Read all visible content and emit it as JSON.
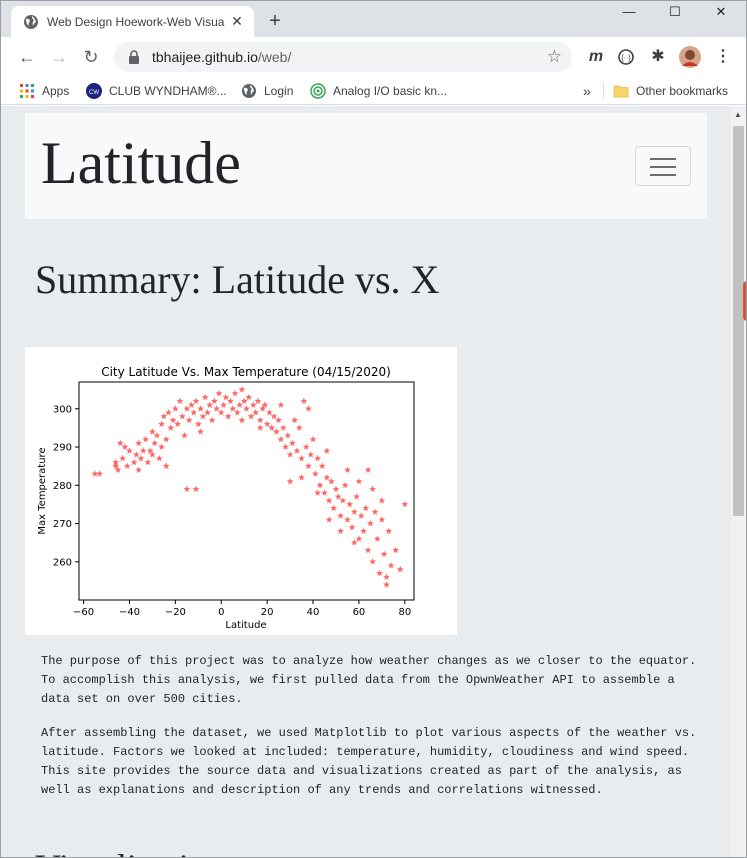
{
  "browser": {
    "tab_title": "Web Design Hoework-Web Visua",
    "url_host": "tbhaijee.github.io",
    "url_path": "/web/",
    "bookmarks": [
      {
        "label": "Apps"
      },
      {
        "label": "CLUB WYNDHAM®..."
      },
      {
        "label": "Login"
      },
      {
        "label": "Analog I/O basic kn..."
      }
    ],
    "other_bookmarks": "Other bookmarks",
    "overflow_label": "»"
  },
  "page": {
    "brand": "Latitude",
    "heading": "Summary: Latitude vs. X",
    "paragraphs": [
      "The purpose of this project was to analyze how weather changes as we closer to the equator. To accomplish this analysis, we first pulled data from the OpwnWeather API to assemble a data set on over 500 cities.",
      "After assembling the dataset, we used Matplotlib to plot various aspects of the weather vs. latitude. Factors we looked at included: temperature, humidity, cloudiness and wind speed. This site provides the source data and visualizations created as part of the analysis, as well as explanations and description of any trends and correlations witnessed."
    ],
    "next_heading": "Visualizations"
  },
  "chart_data": {
    "type": "scatter",
    "title": "City Latitude Vs. Max Temperature (04/15/2020)",
    "xlabel": "Latitude",
    "ylabel": "Max Temperature",
    "xlim": [
      -62,
      84
    ],
    "ylim": [
      250,
      307
    ],
    "xticks": [
      -60,
      -40,
      -20,
      0,
      20,
      40,
      60,
      80
    ],
    "yticks": [
      260,
      270,
      280,
      290,
      300
    ],
    "marker_color": "#ff0000",
    "marker": "star",
    "grid": false,
    "points": [
      [
        -55,
        283
      ],
      [
        -53,
        283
      ],
      [
        -46,
        285
      ],
      [
        -46,
        286
      ],
      [
        -45,
        284
      ],
      [
        -43,
        287
      ],
      [
        -42,
        290
      ],
      [
        -41,
        285
      ],
      [
        -40,
        289
      ],
      [
        -38,
        286
      ],
      [
        -37,
        288
      ],
      [
        -36,
        291
      ],
      [
        -35,
        287
      ],
      [
        -34,
        289
      ],
      [
        -33,
        292
      ],
      [
        -32,
        286
      ],
      [
        -31,
        289
      ],
      [
        -30,
        294
      ],
      [
        -30,
        288
      ],
      [
        -29,
        291
      ],
      [
        -28,
        293
      ],
      [
        -27,
        287
      ],
      [
        -26,
        296
      ],
      [
        -26,
        290
      ],
      [
        -25,
        298
      ],
      [
        -24,
        292
      ],
      [
        -23,
        299
      ],
      [
        -22,
        295
      ],
      [
        -21,
        297
      ],
      [
        -20,
        300
      ],
      [
        -19,
        296
      ],
      [
        -18,
        302
      ],
      [
        -17,
        298
      ],
      [
        -16,
        293
      ],
      [
        -15,
        300
      ],
      [
        -14,
        297
      ],
      [
        -13,
        301
      ],
      [
        -12,
        299
      ],
      [
        -11,
        302
      ],
      [
        -10,
        296
      ],
      [
        -9,
        300
      ],
      [
        -8,
        298
      ],
      [
        -7,
        303
      ],
      [
        -6,
        299
      ],
      [
        -5,
        301
      ],
      [
        -4,
        297
      ],
      [
        -3,
        302
      ],
      [
        -2,
        300
      ],
      [
        -1,
        304
      ],
      [
        0,
        299
      ],
      [
        1,
        301
      ],
      [
        2,
        303
      ],
      [
        3,
        298
      ],
      [
        4,
        302
      ],
      [
        5,
        300
      ],
      [
        6,
        304
      ],
      [
        7,
        299
      ],
      [
        8,
        301
      ],
      [
        9,
        297
      ],
      [
        10,
        302
      ],
      [
        11,
        300
      ],
      [
        12,
        303
      ],
      [
        13,
        298
      ],
      [
        14,
        301
      ],
      [
        15,
        299
      ],
      [
        16,
        302
      ],
      [
        17,
        297
      ],
      [
        18,
        300
      ],
      [
        19,
        301
      ],
      [
        20,
        296
      ],
      [
        21,
        299
      ],
      [
        22,
        295
      ],
      [
        23,
        298
      ],
      [
        24,
        294
      ],
      [
        25,
        297
      ],
      [
        26,
        292
      ],
      [
        27,
        295
      ],
      [
        28,
        290
      ],
      [
        29,
        293
      ],
      [
        30,
        288
      ],
      [
        31,
        291
      ],
      [
        32,
        297
      ],
      [
        33,
        289
      ],
      [
        34,
        295
      ],
      [
        35,
        287
      ],
      [
        36,
        302
      ],
      [
        37,
        290
      ],
      [
        38,
        285
      ],
      [
        39,
        288
      ],
      [
        40,
        292
      ],
      [
        41,
        283
      ],
      [
        42,
        287
      ],
      [
        43,
        280
      ],
      [
        44,
        285
      ],
      [
        45,
        278
      ],
      [
        46,
        282
      ],
      [
        47,
        276
      ],
      [
        48,
        281
      ],
      [
        49,
        274
      ],
      [
        50,
        279
      ],
      [
        51,
        277
      ],
      [
        52,
        272
      ],
      [
        53,
        276
      ],
      [
        54,
        280
      ],
      [
        55,
        271
      ],
      [
        56,
        275
      ],
      [
        57,
        269
      ],
      [
        58,
        273
      ],
      [
        59,
        277
      ],
      [
        60,
        266
      ],
      [
        61,
        272
      ],
      [
        62,
        268
      ],
      [
        63,
        274
      ],
      [
        64,
        263
      ],
      [
        65,
        270
      ],
      [
        66,
        260
      ],
      [
        67,
        273
      ],
      [
        68,
        266
      ],
      [
        69,
        257
      ],
      [
        70,
        271
      ],
      [
        71,
        262
      ],
      [
        72,
        254
      ],
      [
        73,
        268
      ],
      [
        74,
        259
      ],
      [
        76,
        263
      ],
      [
        78,
        258
      ],
      [
        80,
        275
      ],
      [
        -15,
        279
      ],
      [
        -11,
        279
      ],
      [
        30,
        281
      ],
      [
        -44,
        291
      ],
      [
        -36,
        284
      ],
      [
        -24,
        285
      ],
      [
        -9,
        294
      ],
      [
        9,
        305
      ],
      [
        17,
        295
      ],
      [
        26,
        301
      ],
      [
        38,
        300
      ],
      [
        47,
        271
      ],
      [
        55,
        284
      ],
      [
        64,
        284
      ],
      [
        52,
        268
      ],
      [
        46,
        289
      ],
      [
        60,
        281
      ],
      [
        66,
        279
      ],
      [
        70,
        276
      ],
      [
        42,
        278
      ],
      [
        35,
        282
      ],
      [
        58,
        265
      ],
      [
        72,
        256
      ]
    ]
  }
}
